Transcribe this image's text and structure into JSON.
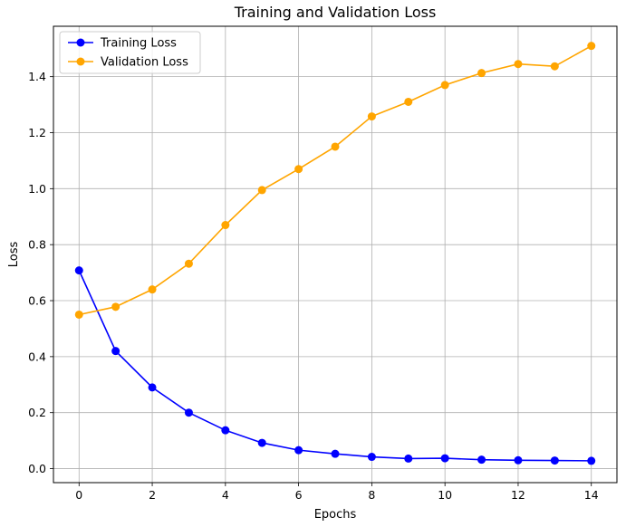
{
  "chart_data": {
    "type": "line",
    "title": "Training and Validation Loss",
    "xlabel": "Epochs",
    "ylabel": "Loss",
    "x": [
      0,
      1,
      2,
      3,
      4,
      5,
      6,
      7,
      8,
      9,
      10,
      11,
      12,
      13,
      14
    ],
    "xlim": [
      -0.7,
      14.7
    ],
    "ylim": [
      -0.05,
      1.58
    ],
    "xticks": [
      0,
      2,
      4,
      6,
      8,
      10,
      12,
      14
    ],
    "yticks": [
      0.0,
      0.2,
      0.4,
      0.6,
      0.8,
      1.0,
      1.2,
      1.4
    ],
    "grid": true,
    "legend_position": "top-left",
    "series": [
      {
        "name": "Training Loss",
        "color": "#0000ff",
        "marker": "circle",
        "values": [
          0.708,
          0.42,
          0.29,
          0.2,
          0.137,
          0.092,
          0.066,
          0.053,
          0.042,
          0.036,
          0.037,
          0.032,
          0.03,
          0.029,
          0.028
        ]
      },
      {
        "name": "Validation Loss",
        "color": "#ffa500",
        "marker": "circle",
        "values": [
          0.55,
          0.578,
          0.64,
          0.732,
          0.87,
          0.995,
          1.07,
          1.15,
          1.258,
          1.31,
          1.37,
          1.413,
          1.445,
          1.437,
          1.51
        ]
      }
    ]
  }
}
